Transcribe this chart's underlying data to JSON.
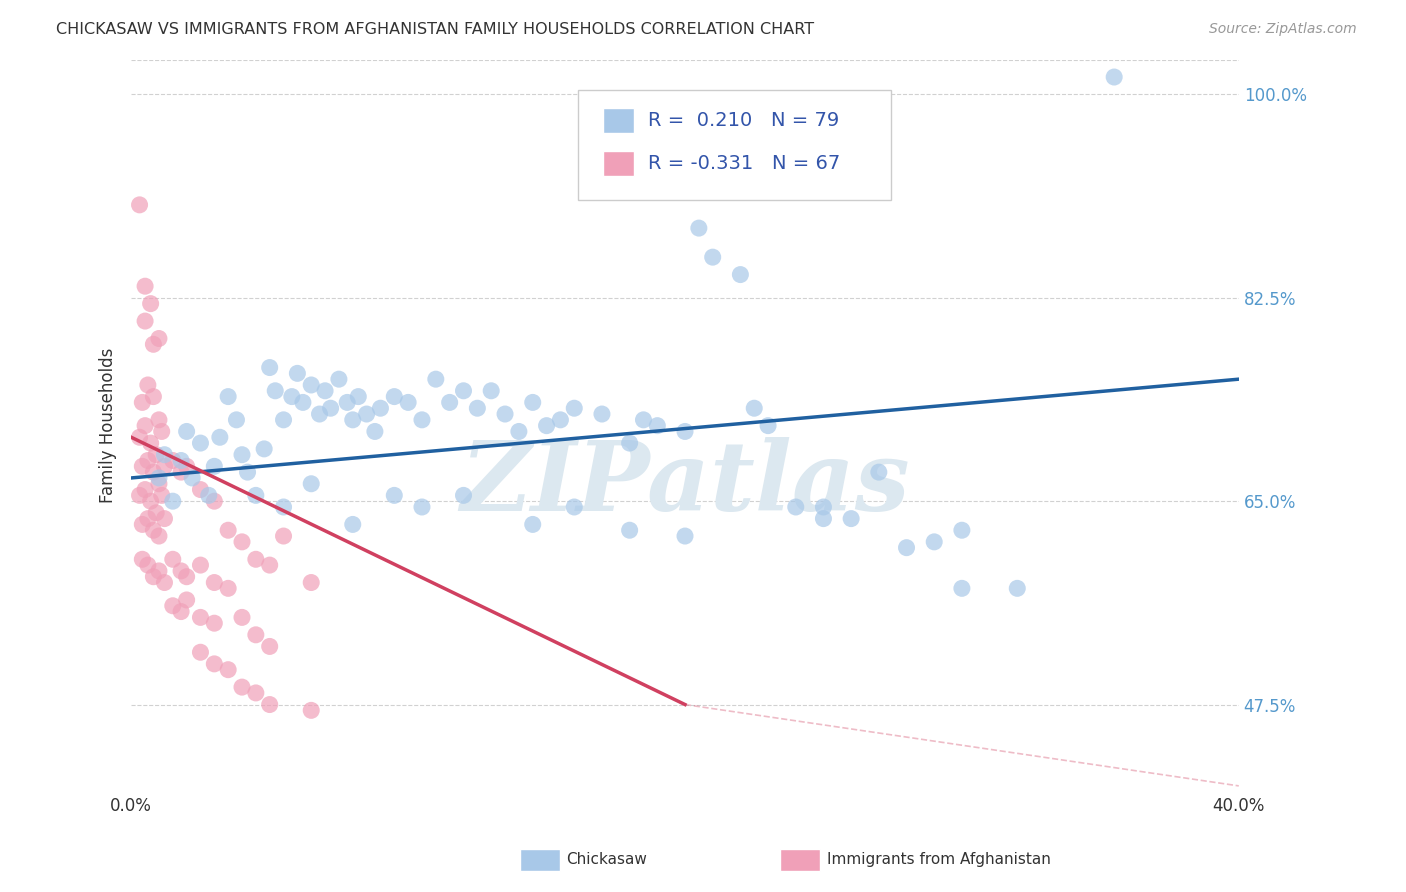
{
  "title": "CHICKASAW VS IMMIGRANTS FROM AFGHANISTAN FAMILY HOUSEHOLDS CORRELATION CHART",
  "source": "Source: ZipAtlas.com",
  "ylabel": "Family Households",
  "x_min": 0.0,
  "x_max": 40.0,
  "y_min": 40.0,
  "y_max": 103.0,
  "x_ticks": [
    0.0,
    5.0,
    10.0,
    15.0,
    20.0,
    25.0,
    30.0,
    35.0,
    40.0
  ],
  "y_ticks": [
    47.5,
    65.0,
    82.5,
    100.0
  ],
  "x_tick_labels": [
    "0.0%",
    "",
    "",
    "",
    "",
    "",
    "",
    "",
    "40.0%"
  ],
  "y_tick_labels": [
    "47.5%",
    "65.0%",
    "82.5%",
    "100.0%"
  ],
  "legend_label_1": "Chickasaw",
  "legend_label_2": "Immigrants from Afghanistan",
  "R1": 0.21,
  "N1": 79,
  "R2": -0.331,
  "N2": 67,
  "blue_color": "#a8c8e8",
  "pink_color": "#f0a0b8",
  "blue_line_color": "#2060a0",
  "pink_line_color": "#d04060",
  "watermark_color": "#dce8f0",
  "background_color": "#ffffff",
  "grid_color": "#cccccc",
  "blue_scatter": [
    [
      1.0,
      67.0
    ],
    [
      1.2,
      69.0
    ],
    [
      1.5,
      65.0
    ],
    [
      1.8,
      68.5
    ],
    [
      2.0,
      71.0
    ],
    [
      2.2,
      67.0
    ],
    [
      2.5,
      70.0
    ],
    [
      2.8,
      65.5
    ],
    [
      3.0,
      68.0
    ],
    [
      3.2,
      70.5
    ],
    [
      3.5,
      74.0
    ],
    [
      3.8,
      72.0
    ],
    [
      4.0,
      69.0
    ],
    [
      4.2,
      67.5
    ],
    [
      4.5,
      65.5
    ],
    [
      4.8,
      69.5
    ],
    [
      5.0,
      76.5
    ],
    [
      5.2,
      74.5
    ],
    [
      5.5,
      72.0
    ],
    [
      5.8,
      74.0
    ],
    [
      6.0,
      76.0
    ],
    [
      6.2,
      73.5
    ],
    [
      6.5,
      75.0
    ],
    [
      6.8,
      72.5
    ],
    [
      7.0,
      74.5
    ],
    [
      7.2,
      73.0
    ],
    [
      7.5,
      75.5
    ],
    [
      7.8,
      73.5
    ],
    [
      8.0,
      72.0
    ],
    [
      8.2,
      74.0
    ],
    [
      8.5,
      72.5
    ],
    [
      8.8,
      71.0
    ],
    [
      9.0,
      73.0
    ],
    [
      9.5,
      74.0
    ],
    [
      10.0,
      73.5
    ],
    [
      10.5,
      72.0
    ],
    [
      11.0,
      75.5
    ],
    [
      11.5,
      73.5
    ],
    [
      12.0,
      74.5
    ],
    [
      12.5,
      73.0
    ],
    [
      13.0,
      74.5
    ],
    [
      13.5,
      72.5
    ],
    [
      14.0,
      71.0
    ],
    [
      14.5,
      73.5
    ],
    [
      15.0,
      71.5
    ],
    [
      15.5,
      72.0
    ],
    [
      16.0,
      73.0
    ],
    [
      17.0,
      72.5
    ],
    [
      18.0,
      70.0
    ],
    [
      18.5,
      72.0
    ],
    [
      19.0,
      71.5
    ],
    [
      20.0,
      71.0
    ],
    [
      20.5,
      88.5
    ],
    [
      21.0,
      86.0
    ],
    [
      22.0,
      84.5
    ],
    [
      22.5,
      73.0
    ],
    [
      23.0,
      71.5
    ],
    [
      24.0,
      64.5
    ],
    [
      25.0,
      63.5
    ],
    [
      26.0,
      63.5
    ],
    [
      27.0,
      67.5
    ],
    [
      28.0,
      61.0
    ],
    [
      29.0,
      61.5
    ],
    [
      30.0,
      57.5
    ],
    [
      32.0,
      57.5
    ],
    [
      35.5,
      101.5
    ],
    [
      5.5,
      64.5
    ],
    [
      6.5,
      66.5
    ],
    [
      8.0,
      63.0
    ],
    [
      9.5,
      65.5
    ],
    [
      10.5,
      64.5
    ],
    [
      12.0,
      65.5
    ],
    [
      14.5,
      63.0
    ],
    [
      16.0,
      64.5
    ],
    [
      18.0,
      62.5
    ],
    [
      20.0,
      62.0
    ],
    [
      25.0,
      64.5
    ],
    [
      30.0,
      62.5
    ]
  ],
  "pink_scatter": [
    [
      0.3,
      90.5
    ],
    [
      0.5,
      83.5
    ],
    [
      0.5,
      80.5
    ],
    [
      0.7,
      82.0
    ],
    [
      0.8,
      78.5
    ],
    [
      1.0,
      79.0
    ],
    [
      0.4,
      73.5
    ],
    [
      0.6,
      75.0
    ],
    [
      0.8,
      74.0
    ],
    [
      1.0,
      72.0
    ],
    [
      0.3,
      70.5
    ],
    [
      0.5,
      71.5
    ],
    [
      0.7,
      70.0
    ],
    [
      0.9,
      69.0
    ],
    [
      1.1,
      71.0
    ],
    [
      0.4,
      68.0
    ],
    [
      0.6,
      68.5
    ],
    [
      0.8,
      67.5
    ],
    [
      1.0,
      66.5
    ],
    [
      1.2,
      68.0
    ],
    [
      0.3,
      65.5
    ],
    [
      0.5,
      66.0
    ],
    [
      0.7,
      65.0
    ],
    [
      0.9,
      64.0
    ],
    [
      1.1,
      65.5
    ],
    [
      0.4,
      63.0
    ],
    [
      0.6,
      63.5
    ],
    [
      0.8,
      62.5
    ],
    [
      1.0,
      62.0
    ],
    [
      1.2,
      63.5
    ],
    [
      1.5,
      68.5
    ],
    [
      1.8,
      67.5
    ],
    [
      2.0,
      68.0
    ],
    [
      2.5,
      66.0
    ],
    [
      3.0,
      65.0
    ],
    [
      0.4,
      60.0
    ],
    [
      0.6,
      59.5
    ],
    [
      0.8,
      58.5
    ],
    [
      1.0,
      59.0
    ],
    [
      1.2,
      58.0
    ],
    [
      1.5,
      60.0
    ],
    [
      1.8,
      59.0
    ],
    [
      2.0,
      58.5
    ],
    [
      2.5,
      59.5
    ],
    [
      3.0,
      58.0
    ],
    [
      1.5,
      56.0
    ],
    [
      1.8,
      55.5
    ],
    [
      2.0,
      56.5
    ],
    [
      2.5,
      55.0
    ],
    [
      3.0,
      54.5
    ],
    [
      3.5,
      62.5
    ],
    [
      4.0,
      61.5
    ],
    [
      4.5,
      60.0
    ],
    [
      5.0,
      59.5
    ],
    [
      5.5,
      62.0
    ],
    [
      6.5,
      58.0
    ],
    [
      3.5,
      57.5
    ],
    [
      4.0,
      55.0
    ],
    [
      4.5,
      53.5
    ],
    [
      5.0,
      52.5
    ],
    [
      3.5,
      50.5
    ],
    [
      4.0,
      49.0
    ],
    [
      4.5,
      48.5
    ],
    [
      2.5,
      52.0
    ],
    [
      3.0,
      51.0
    ],
    [
      5.0,
      47.5
    ],
    [
      6.5,
      47.0
    ]
  ],
  "blue_line": [
    [
      0.0,
      67.0
    ],
    [
      40.0,
      75.5
    ]
  ],
  "pink_line": [
    [
      0.0,
      70.5
    ],
    [
      20.0,
      47.5
    ]
  ],
  "dashed_line": [
    [
      20.0,
      47.5
    ],
    [
      40.0,
      40.5
    ]
  ]
}
